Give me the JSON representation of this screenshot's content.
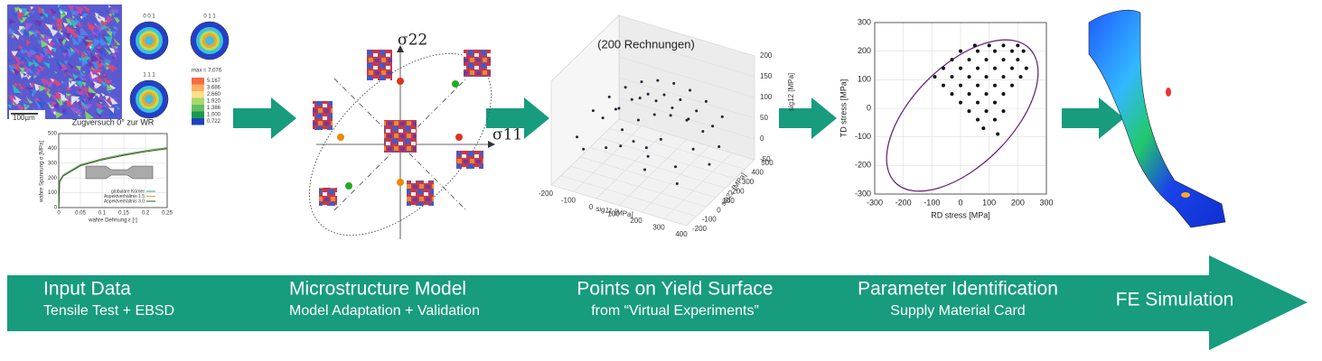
{
  "stages": [
    {
      "title": "Input Data",
      "subtitle": "Tensile Test + EBSD"
    },
    {
      "title": "Microstructure Model",
      "subtitle": "Model Adaptation + Validation"
    },
    {
      "title": "Points on Yield Surface",
      "subtitle": "from “Virtual Experiments”"
    },
    {
      "title": "Parameter Identification",
      "subtitle": "Supply Material Card"
    },
    {
      "title": "FE Simulation"
    }
  ],
  "input_panel": {
    "scale_bar": "100µm",
    "pole_figures": [
      "0 0 1",
      "0 1 1",
      "1 1 1"
    ],
    "colorbar_labels": [
      "max = 7.076",
      "5.167",
      "3.686",
      "2.660",
      "1.920",
      "1.386",
      "1.000",
      "0.722"
    ],
    "tensile_plot": {
      "title": "Zugversuch 0° zur WR",
      "ylabel": "wahre Spannung σ [MPa]",
      "xlabel": "wahre Dehnung ε [-]",
      "xlim": [
        0,
        0.25
      ],
      "ylim": [
        0,
        500
      ],
      "xticks": [
        0,
        0.05,
        0.1,
        0.15,
        0.2,
        0.25
      ],
      "yticks": [
        0,
        100,
        200,
        300,
        400,
        500
      ],
      "legend": [
        "globulare Körner",
        "Aspektverhältnis 1.5",
        "Aspektverhältnis 3.0"
      ],
      "curve_x": [
        0,
        0.002,
        0.01,
        0.05,
        0.1,
        0.15,
        0.2,
        0.25
      ],
      "curve_y": [
        0,
        180,
        220,
        290,
        330,
        360,
        385,
        405
      ]
    }
  },
  "model_panel": {
    "axis_y": "σ22",
    "axis_x": "σ11"
  },
  "yield_panel": {
    "title": "(200 Rechnungen)",
    "xlabel": "sig11 [MPa]",
    "ylabel": "sig22 [MPa]",
    "zlabel": "sig12 [MPa]",
    "xlim": [
      -200,
      400
    ],
    "ylim": [
      -200,
      500
    ],
    "zlim": [
      -50,
      200
    ],
    "xticks": [
      -200,
      -100,
      0,
      100,
      200,
      300,
      400
    ],
    "yticks": [
      -200,
      -100,
      0,
      100,
      200,
      300,
      400,
      500
    ],
    "zticks": [
      -50,
      0,
      50,
      100,
      150,
      200
    ],
    "points": [
      [
        -100,
        0,
        100
      ],
      [
        -50,
        50,
        130
      ],
      [
        0,
        100,
        150
      ],
      [
        50,
        150,
        160
      ],
      [
        100,
        200,
        160
      ],
      [
        150,
        250,
        150
      ],
      [
        200,
        300,
        130
      ],
      [
        250,
        350,
        100
      ],
      [
        300,
        400,
        60
      ],
      [
        0,
        0,
        120
      ],
      [
        50,
        50,
        140
      ],
      [
        100,
        100,
        150
      ],
      [
        150,
        150,
        145
      ],
      [
        200,
        200,
        130
      ],
      [
        250,
        250,
        100
      ],
      [
        300,
        300,
        60
      ],
      [
        50,
        -50,
        90
      ],
      [
        100,
        0,
        110
      ],
      [
        150,
        50,
        120
      ],
      [
        200,
        100,
        115
      ],
      [
        250,
        150,
        100
      ],
      [
        300,
        200,
        70
      ],
      [
        350,
        250,
        30
      ],
      [
        -150,
        -50,
        40
      ],
      [
        -100,
        -100,
        30
      ],
      [
        0,
        -100,
        50
      ],
      [
        100,
        -50,
        70
      ],
      [
        200,
        0,
        80
      ],
      [
        300,
        100,
        50
      ],
      [
        350,
        150,
        10
      ],
      [
        -50,
        150,
        80
      ],
      [
        0,
        250,
        90
      ],
      [
        50,
        300,
        80
      ],
      [
        100,
        350,
        60
      ],
      [
        150,
        400,
        30
      ],
      [
        -100,
        100,
        60
      ],
      [
        0,
        50,
        20
      ],
      [
        100,
        100,
        0
      ],
      [
        200,
        150,
        -20
      ],
      [
        50,
        200,
        -10
      ],
      [
        150,
        -50,
        10
      ],
      [
        250,
        50,
        -30
      ]
    ]
  },
  "param_panel": {
    "xlabel": "RD stress [MPa]",
    "ylabel": "TD stress [MPa]",
    "xlim": [
      -300,
      300
    ],
    "ylim": [
      -300,
      300
    ],
    "xticks": [
      -300,
      -200,
      -100,
      0,
      100,
      200,
      300
    ],
    "yticks": [
      -300,
      -200,
      -100,
      0,
      100,
      200,
      300
    ],
    "points": [
      [
        50,
        220
      ],
      [
        100,
        220
      ],
      [
        150,
        220
      ],
      [
        200,
        220
      ],
      [
        0,
        200
      ],
      [
        60,
        200
      ],
      [
        120,
        200
      ],
      [
        180,
        200
      ],
      [
        220,
        200
      ],
      [
        -30,
        170
      ],
      [
        30,
        170
      ],
      [
        90,
        170
      ],
      [
        150,
        170
      ],
      [
        200,
        170
      ],
      [
        -60,
        140
      ],
      [
        0,
        140
      ],
      [
        60,
        140
      ],
      [
        120,
        140
      ],
      [
        180,
        140
      ],
      [
        230,
        140
      ],
      [
        -90,
        110
      ],
      [
        -30,
        110
      ],
      [
        30,
        110
      ],
      [
        90,
        110
      ],
      [
        150,
        110
      ],
      [
        210,
        110
      ],
      [
        -60,
        80
      ],
      [
        0,
        80
      ],
      [
        60,
        80
      ],
      [
        120,
        80
      ],
      [
        180,
        80
      ],
      [
        -30,
        50
      ],
      [
        30,
        50
      ],
      [
        90,
        50
      ],
      [
        150,
        50
      ],
      [
        0,
        20
      ],
      [
        60,
        20
      ],
      [
        120,
        20
      ],
      [
        30,
        -10
      ],
      [
        90,
        -10
      ],
      [
        150,
        -10
      ],
      [
        60,
        -40
      ],
      [
        120,
        -40
      ],
      [
        80,
        -70
      ],
      [
        130,
        -90
      ]
    ]
  }
}
